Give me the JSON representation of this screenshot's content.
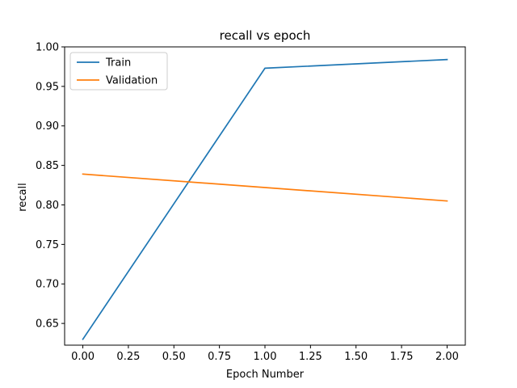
{
  "chart_data": {
    "type": "line",
    "title": "recall vs epoch",
    "xlabel": "Epoch Number",
    "ylabel": "recall",
    "x": [
      0.0,
      1.0,
      2.0
    ],
    "series": [
      {
        "name": "Train",
        "color": "#1f77b4",
        "values": [
          0.63,
          0.973,
          0.984
        ]
      },
      {
        "name": "Validation",
        "color": "#ff7f0e",
        "values": [
          0.839,
          0.822,
          0.805
        ]
      }
    ],
    "xlim": [
      -0.1,
      2.1
    ],
    "ylim": [
      0.6225,
      1.0
    ]
  },
  "xticks": [
    "0.00",
    "0.25",
    "0.50",
    "0.75",
    "1.00",
    "1.25",
    "1.50",
    "1.75",
    "2.00"
  ],
  "xtick_values": [
    0.0,
    0.25,
    0.5,
    0.75,
    1.0,
    1.25,
    1.5,
    1.75,
    2.0
  ],
  "yticks": [
    "0.65",
    "0.70",
    "0.75",
    "0.80",
    "0.85",
    "0.90",
    "0.95",
    "1.00"
  ],
  "ytick_values": [
    0.65,
    0.7,
    0.75,
    0.8,
    0.85,
    0.9,
    0.95,
    1.0
  ],
  "legend": {
    "placement": "top-left"
  }
}
